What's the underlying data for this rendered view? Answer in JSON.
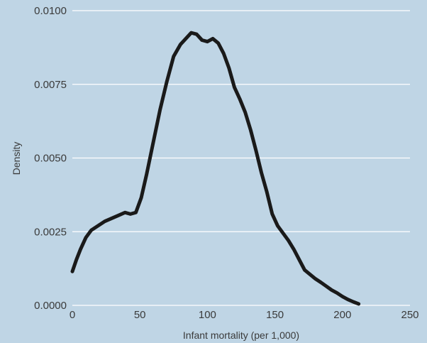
{
  "chart_data": {
    "type": "line",
    "title": "",
    "xlabel": "Infant mortality (per 1,000)",
    "ylabel": "Density",
    "xlim": [
      0,
      250
    ],
    "ylim": [
      0,
      0.01
    ],
    "x_ticks": [
      0,
      50,
      100,
      150,
      200,
      250
    ],
    "x_tick_labels": [
      "0",
      "50",
      "100",
      "150",
      "200",
      "250"
    ],
    "y_ticks": [
      0,
      0.0025,
      0.005,
      0.0075,
      0.01
    ],
    "y_tick_labels": [
      "0.0000",
      "0.0025",
      "0.0050",
      "0.0075",
      "0.0100"
    ],
    "grid": "horizontal",
    "colors": {
      "background": "#bfd5e5",
      "grid": "#ffffff",
      "line": "#1a1a1a",
      "text": "#3a3a3a"
    },
    "series": [
      {
        "x": [
          0,
          3,
          6,
          10,
          14,
          19,
          24,
          29,
          34,
          39,
          43,
          47,
          51,
          55,
          60,
          65,
          70,
          75,
          80,
          84,
          88,
          92,
          96,
          100,
          104,
          108,
          112,
          116,
          120,
          124,
          128,
          132,
          136,
          140,
          144,
          148,
          152,
          156,
          160,
          164,
          168,
          172,
          176,
          180,
          184,
          188,
          192,
          196,
          200,
          204,
          208,
          212
        ],
        "y": [
          0.00115,
          0.00155,
          0.0019,
          0.0023,
          0.00255,
          0.0027,
          0.00285,
          0.00295,
          0.00305,
          0.00315,
          0.0031,
          0.00315,
          0.00365,
          0.00445,
          0.00555,
          0.00665,
          0.0076,
          0.00845,
          0.00885,
          0.00905,
          0.00925,
          0.0092,
          0.009,
          0.00895,
          0.00905,
          0.0089,
          0.00855,
          0.00805,
          0.0074,
          0.007,
          0.00655,
          0.00595,
          0.00525,
          0.0045,
          0.00385,
          0.0031,
          0.0027,
          0.00245,
          0.0022,
          0.0019,
          0.00155,
          0.0012,
          0.00105,
          0.0009,
          0.00078,
          0.00065,
          0.00052,
          0.00042,
          0.0003,
          0.0002,
          0.00012,
          5e-05
        ]
      }
    ]
  }
}
